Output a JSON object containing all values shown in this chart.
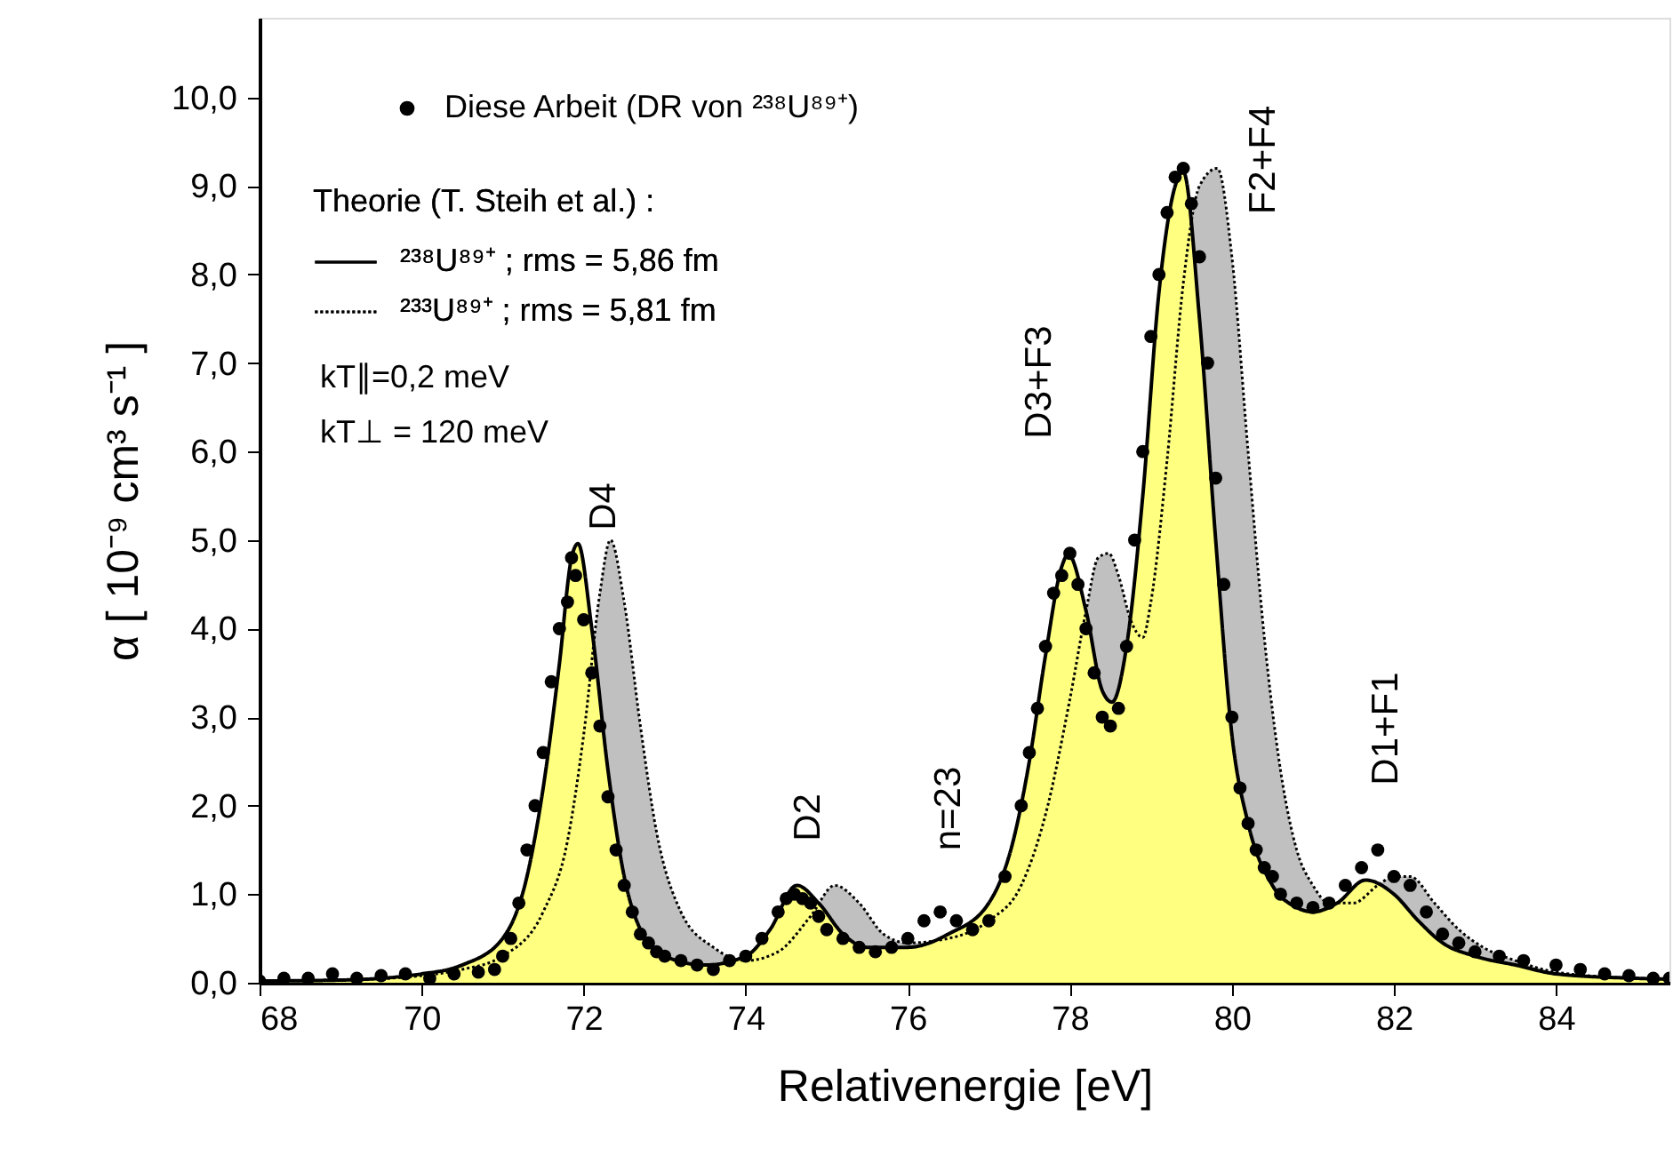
{
  "chart_data": {
    "type": "scatter",
    "xlabel": "Relativenergie [eV]",
    "ylabel": "α  [ 10⁻⁹ cm³ s⁻¹ ]",
    "legend_title": "Theorie (T. Steih et al.) :",
    "legend": "top left",
    "grid": false,
    "xlim": [
      68,
      85.4
    ],
    "ylim": [
      0,
      10.9
    ],
    "xticks": [
      68,
      70,
      72,
      74,
      76,
      78,
      80,
      82,
      84
    ],
    "yticks": [
      {
        "value": 0,
        "label": "0,0"
      },
      {
        "value": 1,
        "label": "1,0"
      },
      {
        "value": 2,
        "label": "2,0"
      },
      {
        "value": 3,
        "label": "3,0"
      },
      {
        "value": 4,
        "label": "4,0"
      },
      {
        "value": 5,
        "label": "5,0"
      },
      {
        "value": 6,
        "label": "6,0"
      },
      {
        "value": 7,
        "label": "7,0"
      },
      {
        "value": 8,
        "label": "8,0"
      },
      {
        "value": 9,
        "label": "9,0"
      },
      {
        "value": 10,
        "label": "10,0"
      }
    ],
    "annotations": [
      "kT∥=0,2 meV",
      "kT⊥ = 120 meV",
      "D4",
      "D2",
      "n=23",
      "D3+F3",
      "F2+F4",
      "D1+F1"
    ],
    "series": [
      {
        "name": "²³³U⁸⁹⁺ ; rms = 5,81 fm",
        "type": "area",
        "color": "#c0c0c0",
        "line_style": "dotted",
        "marker": "none",
        "x": [
          68,
          69,
          70,
          70.5,
          71,
          71.5,
          71.8,
          72.0,
          72.2,
          72.33,
          72.5,
          72.7,
          72.9,
          73.2,
          73.6,
          74.0,
          74.4,
          74.8,
          75.1,
          75.4,
          75.7,
          76.0,
          76.5,
          77.0,
          77.4,
          77.7,
          78.0,
          78.2,
          78.35,
          78.48,
          78.6,
          78.75,
          78.9,
          79.0,
          79.2,
          79.4,
          79.6,
          79.82,
          80.0,
          80.2,
          80.4,
          80.6,
          80.8,
          81.0,
          81.2,
          81.5,
          81.8,
          82.0,
          82.2,
          82.5,
          82.8,
          83.1,
          83.5,
          84,
          85,
          85.4
        ],
        "values": [
          0.02,
          0.03,
          0.08,
          0.15,
          0.3,
          0.8,
          1.6,
          2.8,
          4.4,
          5.0,
          4.3,
          2.9,
          1.7,
          0.8,
          0.4,
          0.25,
          0.35,
          0.75,
          1.1,
          0.9,
          0.55,
          0.45,
          0.5,
          0.7,
          1.1,
          1.9,
          3.2,
          4.2,
          4.8,
          4.85,
          4.6,
          4.1,
          3.9,
          4.3,
          5.9,
          7.9,
          9.0,
          9.2,
          8.2,
          6.0,
          3.9,
          2.4,
          1.5,
          1.1,
          0.9,
          0.9,
          1.1,
          1.2,
          1.2,
          0.9,
          0.6,
          0.4,
          0.25,
          0.12,
          0.05,
          0.04
        ]
      },
      {
        "name": "²³⁸U⁸⁹⁺ ; rms = 5,86 fm",
        "type": "area",
        "color": "#ffff80",
        "line_style": "solid",
        "marker": "none",
        "x": [
          68,
          69,
          70,
          70.5,
          71,
          71.3,
          71.5,
          71.7,
          71.85,
          71.93,
          72.1,
          72.3,
          72.5,
          72.7,
          73.0,
          73.5,
          74.0,
          74.3,
          74.63,
          74.9,
          75.2,
          75.5,
          76.0,
          76.5,
          77.0,
          77.3,
          77.5,
          77.7,
          77.9,
          77.98,
          78.2,
          78.4,
          78.52,
          78.7,
          78.9,
          79.1,
          79.3,
          79.4,
          79.6,
          79.8,
          80.0,
          80.2,
          80.5,
          80.8,
          81.0,
          81.3,
          81.65,
          82.0,
          82.3,
          82.6,
          83.0,
          83.5,
          84,
          85,
          85.4
        ],
        "values": [
          0.02,
          0.03,
          0.1,
          0.2,
          0.5,
          1.2,
          2.2,
          3.6,
          4.8,
          4.96,
          4.0,
          2.4,
          1.2,
          0.6,
          0.3,
          0.2,
          0.3,
          0.6,
          1.1,
          0.9,
          0.55,
          0.4,
          0.4,
          0.55,
          0.9,
          1.6,
          2.5,
          3.7,
          4.7,
          4.84,
          4.2,
          3.3,
          3.17,
          3.8,
          5.5,
          7.8,
          9.0,
          9.16,
          7.5,
          5.0,
          2.8,
          1.8,
          1.1,
          0.85,
          0.8,
          0.9,
          1.16,
          1.0,
          0.7,
          0.45,
          0.3,
          0.2,
          0.1,
          0.05,
          0.04
        ]
      },
      {
        "name": "Diese Arbeit (DR von ²³⁸U⁸⁹⁺)",
        "marker": "circle",
        "color": "#000000",
        "x": [
          68.0,
          68.3,
          68.6,
          68.9,
          69.2,
          69.5,
          69.8,
          70.1,
          70.4,
          70.7,
          70.9,
          71.0,
          71.1,
          71.2,
          71.3,
          71.4,
          71.5,
          71.6,
          71.7,
          71.8,
          71.85,
          71.9,
          72.0,
          72.1,
          72.2,
          72.3,
          72.4,
          72.5,
          72.6,
          72.7,
          72.8,
          72.9,
          73.0,
          73.2,
          73.4,
          73.6,
          73.8,
          74.0,
          74.2,
          74.4,
          74.5,
          74.6,
          74.7,
          74.8,
          74.9,
          75.0,
          75.2,
          75.4,
          75.6,
          75.8,
          76.0,
          76.2,
          76.4,
          76.6,
          76.8,
          77.0,
          77.2,
          77.4,
          77.5,
          77.6,
          77.7,
          77.8,
          77.9,
          78.0,
          78.1,
          78.2,
          78.3,
          78.4,
          78.5,
          78.6,
          78.7,
          78.8,
          78.9,
          79.0,
          79.1,
          79.2,
          79.3,
          79.4,
          79.5,
          79.6,
          79.7,
          79.8,
          79.9,
          80.0,
          80.1,
          80.2,
          80.3,
          80.4,
          80.5,
          80.6,
          80.8,
          81.0,
          81.2,
          81.4,
          81.6,
          81.8,
          82.0,
          82.2,
          82.4,
          82.6,
          82.8,
          83.0,
          83.3,
          83.6,
          84.0,
          84.3,
          84.6,
          84.9,
          85.2,
          85.4
        ],
        "values": [
          0.02,
          0.05,
          0.05,
          0.1,
          0.05,
          0.08,
          0.1,
          0.05,
          0.1,
          0.12,
          0.15,
          0.3,
          0.5,
          0.9,
          1.5,
          2.0,
          2.6,
          3.4,
          4.0,
          4.3,
          4.8,
          4.6,
          4.1,
          3.5,
          2.9,
          2.1,
          1.5,
          1.1,
          0.8,
          0.55,
          0.45,
          0.35,
          0.3,
          0.25,
          0.2,
          0.15,
          0.25,
          0.3,
          0.5,
          0.8,
          0.95,
          1.0,
          0.95,
          0.9,
          0.75,
          0.6,
          0.5,
          0.4,
          0.35,
          0.4,
          0.5,
          0.7,
          0.8,
          0.7,
          0.6,
          0.7,
          1.2,
          2.0,
          2.6,
          3.1,
          3.8,
          4.4,
          4.6,
          4.85,
          4.5,
          4.0,
          3.5,
          3.0,
          2.9,
          3.1,
          3.8,
          5.0,
          6.0,
          7.3,
          8.0,
          8.7,
          9.1,
          9.2,
          8.8,
          8.2,
          7.0,
          5.7,
          4.5,
          3.0,
          2.2,
          1.8,
          1.5,
          1.3,
          1.2,
          1.0,
          0.9,
          0.85,
          0.9,
          1.1,
          1.3,
          1.5,
          1.2,
          1.1,
          0.8,
          0.55,
          0.45,
          0.35,
          0.3,
          0.25,
          0.2,
          0.15,
          0.1,
          0.08,
          0.05,
          0.05
        ]
      }
    ]
  }
}
